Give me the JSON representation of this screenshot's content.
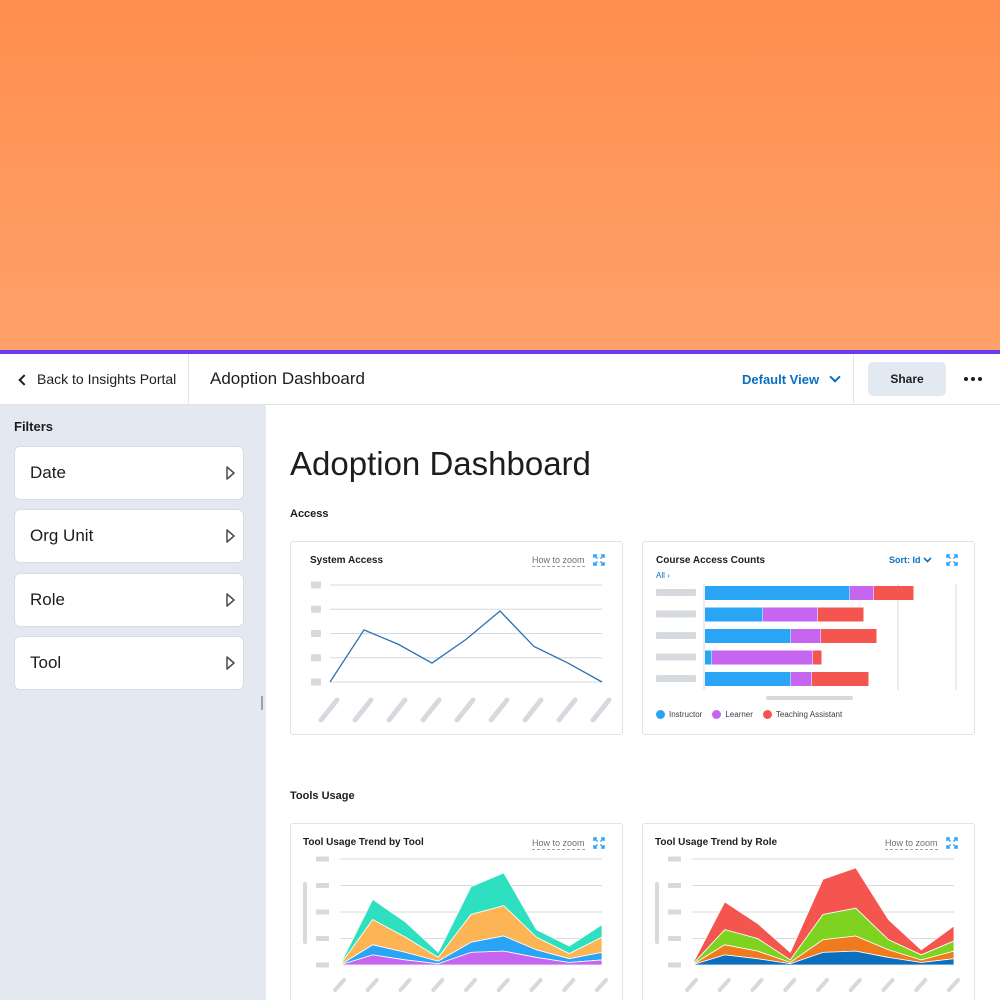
{
  "topbar": {
    "back_label": "Back to Insights Portal",
    "title": "Adoption Dashboard",
    "view_label": "Default View",
    "share_label": "Share"
  },
  "sidebar": {
    "title": "Filters",
    "filters": [
      "Date",
      "Org Unit",
      "Role",
      "Tool"
    ]
  },
  "main": {
    "title": "Adoption Dashboard",
    "sections": [
      {
        "label": "Access"
      },
      {
        "label": "Tools Usage"
      }
    ],
    "zoom_label": "How to zoom"
  },
  "colors": {
    "banner": "#ff9152",
    "accent": "#6a3cf0",
    "link": "#0b6fbf",
    "instructor": "#2aa4f4",
    "learner": "#c565f0",
    "teaching_assistant": "#f4564f"
  },
  "chart_data": [
    {
      "name": "system-access",
      "title": "System Access",
      "type": "line",
      "x": [
        1,
        2,
        3,
        4,
        5,
        6,
        7,
        8,
        9
      ],
      "values": [
        0,
        2.2,
        1.6,
        0.8,
        1.8,
        3.0,
        1.5,
        0.8,
        0
      ],
      "ylim": [
        0,
        4.1
      ],
      "color": "#2a72b5",
      "grid": true
    },
    {
      "name": "course-access-counts",
      "title": "Course Access Counts",
      "type": "bar",
      "orientation": "horizontal",
      "stacked": true,
      "sort_label": "Sort: Id",
      "filter_label": "All",
      "categories": [
        "c1",
        "c2",
        "c3",
        "c4",
        "c5"
      ],
      "series": [
        {
          "name": "Instructor",
          "color": "#2aa4f4",
          "values": [
            145,
            58,
            86,
            7,
            86
          ]
        },
        {
          "name": "Learner",
          "color": "#c565f0",
          "values": [
            24,
            55,
            30,
            101,
            21
          ]
        },
        {
          "name": "Teaching Assistant",
          "color": "#f4564f",
          "values": [
            40,
            46,
            56,
            9,
            57
          ]
        }
      ],
      "xlim": [
        0,
        252
      ],
      "legend": "bottom-left"
    },
    {
      "name": "tool-usage-trend-by-tool",
      "title": "Tool Usage Trend by Tool",
      "type": "area",
      "stacked": true,
      "x": [
        1,
        2,
        3,
        4,
        5,
        6,
        7,
        8,
        9
      ],
      "series": [
        {
          "color": "#c565f0",
          "values": [
            0,
            0.4,
            0.2,
            0.05,
            0.5,
            0.55,
            0.3,
            0.1,
            0.2
          ]
        },
        {
          "color": "#2aa4f4",
          "values": [
            0,
            0.4,
            0.3,
            0.1,
            0.4,
            0.6,
            0.3,
            0.15,
            0.3
          ]
        },
        {
          "color": "#fcb454",
          "values": [
            0,
            1.0,
            0.6,
            0.15,
            1.1,
            1.2,
            0.5,
            0.2,
            0.6
          ]
        },
        {
          "color": "#2ee0c0",
          "values": [
            0,
            0.8,
            0.6,
            0.2,
            1.1,
            1.3,
            0.3,
            0.3,
            0.5
          ]
        }
      ],
      "ylim": [
        0,
        4.2
      ],
      "grid": true
    },
    {
      "name": "tool-usage-trend-by-role",
      "title": "Tool Usage Trend by Role",
      "type": "area",
      "stacked": true,
      "x": [
        1,
        2,
        3,
        4,
        5,
        6,
        7,
        8,
        9
      ],
      "series": [
        {
          "color": "#0b6fbf",
          "values": [
            0,
            0.4,
            0.25,
            0.05,
            0.5,
            0.55,
            0.3,
            0.1,
            0.25
          ]
        },
        {
          "color": "#f07a1e",
          "values": [
            0,
            0.4,
            0.3,
            0.05,
            0.5,
            0.6,
            0.3,
            0.1,
            0.3
          ]
        },
        {
          "color": "#7ed321",
          "values": [
            0,
            0.6,
            0.5,
            0.1,
            1.0,
            1.1,
            0.4,
            0.2,
            0.4
          ]
        },
        {
          "color": "#f4564f",
          "values": [
            0,
            1.1,
            0.6,
            0.3,
            1.4,
            1.6,
            0.8,
            0.2,
            0.6
          ]
        }
      ],
      "ylim": [
        0,
        4.2
      ],
      "grid": true
    }
  ]
}
